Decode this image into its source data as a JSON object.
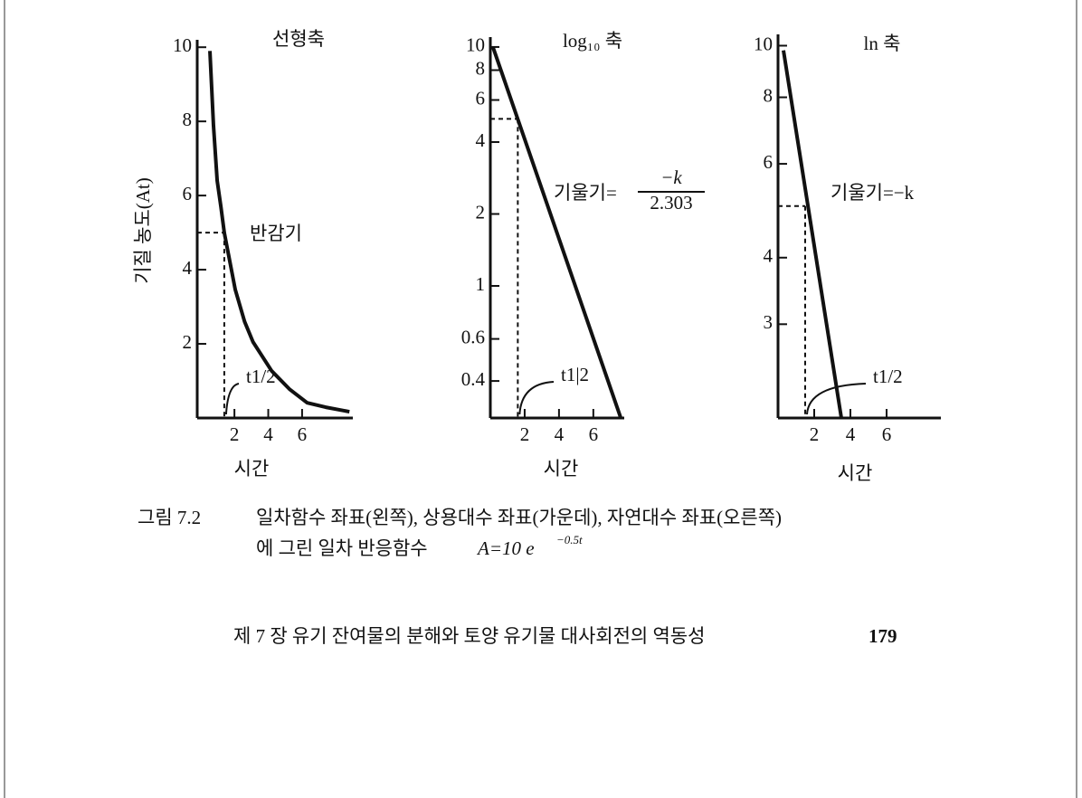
{
  "chart_data": [
    {
      "type": "line",
      "yscale": "linear",
      "title": "선형축",
      "y_label": "기질 농도(At)",
      "x_label": "시간",
      "xlim": [
        -0.2,
        9
      ],
      "xticks": [
        2,
        4,
        6
      ],
      "ylim": [
        0,
        10.2
      ],
      "yticks": [
        2,
        4,
        6,
        8,
        10
      ],
      "x": [
        0.55,
        0.76,
        0.98,
        1.2,
        1.4,
        2.05,
        2.6,
        3.1,
        4.2,
        5.25,
        6.3,
        7.4,
        8.8
      ],
      "values": [
        9.9,
        7.9,
        6.4,
        5.7,
        5.0,
        3.46,
        2.6,
        2.05,
        1.27,
        0.78,
        0.41,
        0.29,
        0.17
      ],
      "color": "#111111",
      "half_life": {
        "x": 1.4,
        "y": 5
      },
      "half_life_label": "반감기",
      "t_half_label": "t1/2"
    },
    {
      "type": "line",
      "yscale": "log10",
      "title": "log₁₀ 축",
      "x_label": "시간",
      "xlim": [
        0,
        7.8
      ],
      "xticks": [
        2,
        4,
        6
      ],
      "ylim": [
        0.28,
        11
      ],
      "yticks": [
        0.4,
        0.6,
        1,
        2,
        4,
        6,
        8,
        10
      ],
      "x": [
        0.15,
        7.6
      ],
      "values": [
        10,
        0.28
      ],
      "color": "#111111",
      "half_life": {
        "x": 1.6,
        "y": 5
      },
      "t_half_label": "t1|2",
      "slope_label": "기울기=",
      "slope_numerator": "−k",
      "slope_denominator": "2.303"
    },
    {
      "type": "line",
      "yscale": "ln",
      "title": "ln 축",
      "x_label": "시간",
      "xlim": [
        0,
        9
      ],
      "xticks": [
        2,
        4,
        6
      ],
      "ylim": [
        2,
        10.5
      ],
      "yticks": [
        3,
        4,
        6,
        8,
        10
      ],
      "x": [
        0.3,
        3.5
      ],
      "values": [
        9.8,
        2
      ],
      "color": "#111111",
      "half_life": {
        "x": 1.5,
        "y": 5
      },
      "t_half_label": "t1/2",
      "slope_label": "기울기=−k"
    }
  ],
  "caption": {
    "label": "그림 7.2",
    "line1": "일차함수 좌표(왼쪽), 상용대수 좌표(가운데), 자연대수 좌표(오른쪽)",
    "line2": "에 그린 일차 반응함수",
    "formula": "A=10 e",
    "exponent": "−0.5t"
  },
  "footer": {
    "chapter": "제 7 장  유기 잔여물의 분해와 토양 유기물 대사회전의 역동성",
    "page": "179"
  }
}
